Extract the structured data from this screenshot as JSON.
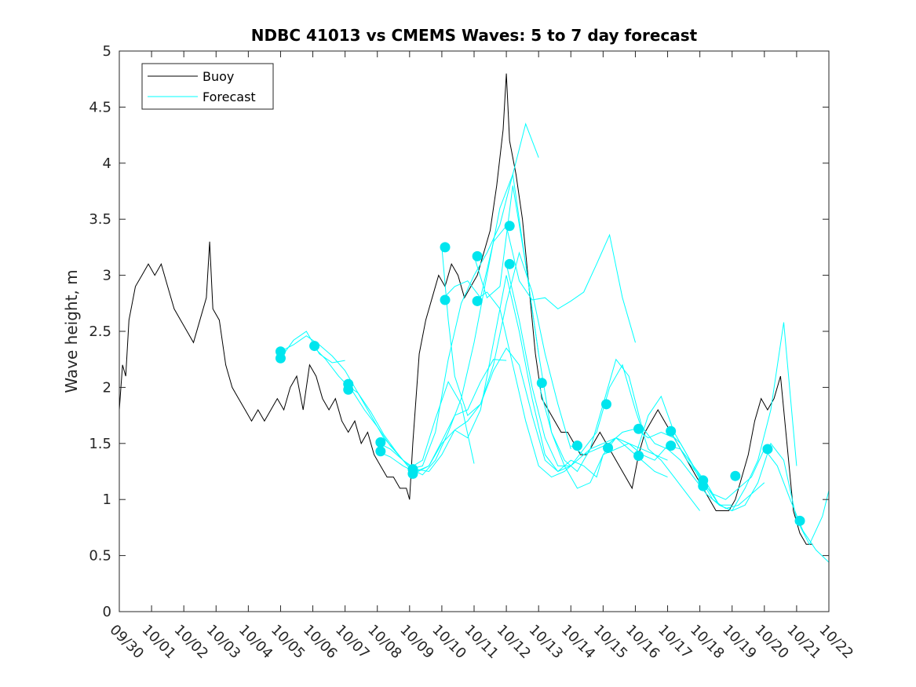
{
  "chart_data": {
    "type": "line",
    "title": "NDBC 41013 vs CMEMS Waves: 5 to 7 day forecast",
    "xlabel": "",
    "ylabel": "Wave height, m",
    "xlim": [
      0,
      22
    ],
    "ylim": [
      0,
      5
    ],
    "x_tick_labels": [
      "09/30",
      "10/01",
      "10/02",
      "10/03",
      "10/04",
      "10/05",
      "10/06",
      "10/07",
      "10/08",
      "10/09",
      "10/10",
      "10/11",
      "10/12",
      "10/13",
      "10/14",
      "10/15",
      "10/16",
      "10/17",
      "10/18",
      "10/19",
      "10/20",
      "10/21",
      "10/22"
    ],
    "y_ticks": [
      0,
      0.5,
      1,
      1.5,
      2,
      2.5,
      3,
      3.5,
      4,
      4.5,
      5
    ],
    "y_tick_labels": [
      "0",
      "0.5",
      "1",
      "1.5",
      "2",
      "2.5",
      "3",
      "3.5",
      "4",
      "4.5",
      "5"
    ],
    "legend": {
      "position": "top-left",
      "entries": [
        "Buoy",
        "Forecast"
      ]
    },
    "colors": {
      "buoy": "#000000",
      "forecast": "#00ffff",
      "marker": "#00e5ee",
      "axis": "#262626"
    },
    "buoy": {
      "name": "Buoy",
      "x": [
        0,
        0.1,
        0.2,
        0.3,
        0.5,
        0.7,
        0.9,
        1.1,
        1.3,
        1.5,
        1.7,
        1.9,
        2.1,
        2.3,
        2.5,
        2.7,
        2.8,
        2.9,
        3.1,
        3.3,
        3.5,
        3.7,
        3.9,
        4.1,
        4.3,
        4.5,
        4.7,
        4.9,
        5.1,
        5.3,
        5.5,
        5.7,
        5.9,
        6.1,
        6.3,
        6.5,
        6.7,
        6.9,
        7.1,
        7.3,
        7.5,
        7.7,
        7.9,
        8.1,
        8.3,
        8.5,
        8.7,
        8.9,
        9.0,
        9.1,
        9.3,
        9.5,
        9.7,
        9.9,
        10.1,
        10.3,
        10.5,
        10.7,
        10.9,
        11.1,
        11.3,
        11.5,
        11.7,
        11.9,
        12.0,
        12.1,
        12.3,
        12.5,
        12.7,
        12.9,
        13.1,
        13.3,
        13.5,
        13.7,
        13.9,
        14.1,
        14.3,
        14.5,
        14.7,
        14.9,
        15.1,
        15.3,
        15.5,
        15.7,
        15.9,
        16.1,
        16.3,
        16.5,
        16.7,
        16.9,
        17.1,
        17.3,
        17.5,
        17.7,
        17.9,
        18.1,
        18.3,
        18.5,
        18.7,
        18.9,
        19.1,
        19.3,
        19.5,
        19.7,
        19.9,
        20.1,
        20.3,
        20.5,
        20.7,
        20.9,
        21.1,
        21.3,
        21.5
      ],
      "values": [
        1.8,
        2.2,
        2.1,
        2.6,
        2.9,
        3.0,
        3.1,
        3.0,
        3.1,
        2.9,
        2.7,
        2.6,
        2.5,
        2.4,
        2.6,
        2.8,
        3.3,
        2.7,
        2.6,
        2.2,
        2.0,
        1.9,
        1.8,
        1.7,
        1.8,
        1.7,
        1.8,
        1.9,
        1.8,
        2.0,
        2.1,
        1.8,
        2.2,
        2.1,
        1.9,
        1.8,
        1.9,
        1.7,
        1.6,
        1.7,
        1.5,
        1.6,
        1.4,
        1.3,
        1.2,
        1.2,
        1.1,
        1.1,
        1.0,
        1.5,
        2.3,
        2.6,
        2.8,
        3.0,
        2.9,
        3.1,
        3.0,
        2.8,
        2.9,
        3.0,
        3.2,
        3.4,
        3.8,
        4.3,
        4.8,
        4.2,
        3.9,
        3.5,
        2.9,
        2.3,
        1.9,
        1.8,
        1.7,
        1.6,
        1.6,
        1.5,
        1.4,
        1.4,
        1.5,
        1.6,
        1.5,
        1.4,
        1.3,
        1.2,
        1.1,
        1.4,
        1.6,
        1.7,
        1.8,
        1.7,
        1.6,
        1.5,
        1.4,
        1.3,
        1.2,
        1.1,
        1.0,
        0.9,
        0.9,
        0.9,
        1.0,
        1.2,
        1.4,
        1.7,
        1.9,
        1.8,
        1.9,
        2.1,
        1.5,
        0.9,
        0.7,
        0.6,
        0.6
      ]
    },
    "forecast_series": [
      {
        "name": "Forecast",
        "x": [
          5.0,
          5.4,
          5.8,
          6.2,
          6.6,
          7.0,
          7.4,
          7.8,
          8.2,
          8.6,
          9.0,
          9.4,
          9.8,
          10.2,
          10.6,
          11.0
        ],
        "values": [
          2.32,
          2.38,
          2.46,
          2.38,
          2.28,
          2.15,
          1.95,
          1.78,
          1.58,
          1.42,
          1.28,
          1.35,
          1.72,
          2.05,
          1.85,
          1.32
        ]
      },
      {
        "name": "Forecast",
        "x": [
          5.0,
          5.4,
          5.8,
          6.2,
          6.6,
          7.0
        ],
        "values": [
          2.26,
          2.42,
          2.5,
          2.3,
          2.22,
          2.24
        ]
      },
      {
        "name": "Forecast",
        "x": [
          6.0,
          6.4,
          6.8,
          7.2,
          7.6,
          8.0,
          8.4,
          8.8,
          9.2,
          9.6,
          10.0,
          10.4,
          10.8,
          11.2,
          11.6,
          12.0
        ],
        "values": [
          2.37,
          2.25,
          2.1,
          1.98,
          1.8,
          1.65,
          1.48,
          1.35,
          1.25,
          1.3,
          1.52,
          1.75,
          1.8,
          2.05,
          2.25,
          2.24
        ]
      },
      {
        "name": "Forecast",
        "x": [
          7.0,
          7.4,
          7.8,
          8.2,
          8.6,
          9.0,
          9.4,
          9.8,
          10.2,
          10.6,
          11.0,
          11.4,
          11.8,
          12.2,
          12.6,
          13.0
        ],
        "values": [
          2.03,
          1.95,
          1.75,
          1.55,
          1.42,
          1.28,
          1.22,
          1.35,
          1.6,
          1.9,
          2.4,
          3.0,
          3.6,
          3.9,
          3.1,
          2.3
        ]
      },
      {
        "name": "Forecast",
        "x": [
          8.0,
          8.4,
          8.8,
          9.2,
          9.6,
          10.0,
          10.4,
          10.8,
          11.2,
          11.6,
          12.0,
          12.4,
          12.8,
          13.2,
          13.6,
          14.0
        ],
        "values": [
          1.51,
          1.45,
          1.35,
          1.27,
          1.25,
          1.4,
          1.62,
          1.7,
          1.85,
          2.2,
          2.75,
          3.2,
          2.85,
          2.3,
          1.85,
          1.45
        ]
      },
      {
        "name": "Forecast",
        "x": [
          8.0,
          8.4,
          8.8,
          9.2,
          9.6,
          10.0,
          10.4,
          10.8,
          11.2,
          11.6,
          12.0,
          12.4,
          12.8,
          13.2,
          13.6,
          14.0
        ],
        "values": [
          1.43,
          1.38,
          1.3,
          1.24,
          1.3,
          1.5,
          1.62,
          1.55,
          1.8,
          2.4,
          3.0,
          2.5,
          1.9,
          1.4,
          1.25,
          1.3
        ]
      },
      {
        "name": "Forecast",
        "x": [
          9.0,
          9.4,
          9.8,
          10.2,
          10.6,
          11.0,
          11.4,
          11.8,
          12.2,
          12.6,
          13.0
        ],
        "values": [
          1.27,
          1.3,
          1.6,
          2.25,
          2.75,
          3.0,
          3.2,
          3.45,
          3.9,
          4.35,
          4.05
        ]
      },
      {
        "name": "Forecast",
        "x": [
          10.0,
          10.2,
          10.4,
          10.8,
          11.2,
          11.6,
          12.0,
          12.4,
          12.8,
          13.2,
          13.6,
          14.0,
          14.4,
          14.8,
          15.0,
          15.4,
          15.8,
          16.0
        ],
        "values": [
          3.25,
          2.6,
          2.1,
          1.75,
          1.85,
          2.15,
          2.35,
          2.2,
          1.75,
          1.35,
          1.25,
          1.35,
          1.3,
          1.2,
          1.4,
          1.55,
          1.5,
          1.45
        ]
      },
      {
        "name": "Forecast",
        "x": [
          10.0,
          10.4,
          10.8,
          11.2,
          11.6,
          12.0,
          12.4,
          12.8,
          13.2,
          13.6,
          14.0,
          14.4,
          14.8,
          15.2,
          15.6,
          16.0
        ],
        "values": [
          2.78,
          2.9,
          2.95,
          2.8,
          3.3,
          3.44,
          2.95,
          2.78,
          2.8,
          2.7,
          2.77,
          2.85,
          3.1,
          3.36,
          2.8,
          2.4
        ]
      },
      {
        "name": "Forecast",
        "x": [
          11.0,
          11.4,
          11.8,
          12.2,
          12.6,
          13.0,
          13.4,
          13.8,
          14.2,
          14.6,
          15.0,
          15.4,
          15.8,
          16.2,
          16.6,
          17.0
        ],
        "values": [
          3.17,
          2.8,
          2.9,
          3.8,
          3.1,
          2.3,
          1.6,
          1.3,
          1.1,
          1.15,
          1.4,
          1.45,
          1.5,
          1.45,
          1.4,
          1.35
        ]
      },
      {
        "name": "Forecast",
        "x": [
          11.0,
          11.4,
          11.8,
          12.2,
          12.6,
          13.0,
          13.4,
          13.8,
          14.2,
          14.6,
          15.0,
          15.4,
          15.8,
          16.2,
          16.6,
          17.0
        ],
        "values": [
          2.77,
          2.85,
          2.7,
          2.2,
          1.7,
          1.3,
          1.2,
          1.25,
          1.35,
          1.45,
          1.5,
          1.55,
          1.45,
          1.35,
          1.25,
          1.2
        ]
      },
      {
        "name": "Forecast",
        "x": [
          12.0,
          12.4,
          12.8,
          13.2,
          13.6,
          14.0,
          14.4,
          14.8,
          15.2,
          15.6,
          16.0,
          16.4,
          16.8,
          17.2,
          17.6,
          18.0
        ],
        "values": [
          3.1,
          2.6,
          2.0,
          1.55,
          1.3,
          1.3,
          1.45,
          1.6,
          2.0,
          2.2,
          1.8,
          1.45,
          1.35,
          1.2,
          1.05,
          0.9
        ]
      },
      {
        "name": "Forecast",
        "x": [
          13.0,
          13.4,
          13.8,
          14.2,
          14.6,
          15.0,
          15.4,
          15.8,
          16.2,
          16.6,
          17.0,
          17.4,
          17.8,
          18.2,
          18.6,
          19.0
        ],
        "values": [
          2.04,
          1.6,
          1.35,
          1.25,
          1.45,
          1.85,
          2.25,
          2.1,
          1.65,
          1.5,
          1.45,
          1.35,
          1.2,
          1.05,
          0.95,
          0.95
        ]
      },
      {
        "name": "Forecast",
        "x": [
          14.0,
          14.4,
          14.8,
          15.2,
          15.6,
          16.0,
          16.4,
          16.8,
          17.2,
          17.6,
          18.0,
          18.4,
          18.8,
          19.2,
          19.6,
          20.0
        ],
        "values": [
          1.48,
          1.4,
          1.45,
          1.5,
          1.6,
          1.63,
          1.55,
          1.6,
          1.55,
          1.35,
          1.2,
          1.0,
          0.92,
          0.95,
          1.05,
          1.15
        ]
      },
      {
        "name": "Forecast",
        "x": [
          15.0,
          15.4,
          15.8,
          16.2,
          16.6,
          17.0,
          17.4,
          17.8,
          18.2,
          18.6,
          19.0,
          19.4,
          19.8,
          20.2,
          20.6,
          21.0
        ],
        "values": [
          1.46,
          1.55,
          1.5,
          1.4,
          1.35,
          1.48,
          1.45,
          1.3,
          1.12,
          0.95,
          0.9,
          1.1,
          1.35,
          1.8,
          2.58,
          1.3
        ]
      },
      {
        "name": "Forecast",
        "x": [
          16.0,
          16.4,
          16.8,
          17.2,
          17.6,
          18.0,
          18.4,
          18.8,
          19.2,
          19.6,
          20.0,
          20.4,
          20.8,
          21.2,
          21.6,
          22.0
        ],
        "values": [
          1.39,
          1.75,
          1.92,
          1.6,
          1.4,
          1.18,
          1.05,
          1.0,
          1.1,
          1.2,
          1.45,
          1.3,
          1.0,
          0.72,
          0.55,
          0.44
        ]
      },
      {
        "name": "Forecast",
        "x": [
          17.0,
          17.4,
          17.8,
          18.2,
          18.6,
          19.0,
          19.4,
          19.8,
          20.2,
          20.6,
          21.0,
          21.4,
          21.8,
          22.0
        ],
        "values": [
          1.61,
          1.5,
          1.3,
          1.15,
          0.95,
          0.9,
          0.95,
          1.15,
          1.5,
          1.35,
          0.82,
          0.6,
          0.85,
          1.08
        ]
      }
    ],
    "forecast_markers": {
      "x": [
        5.0,
        5.0,
        6.05,
        7.1,
        7.1,
        8.1,
        8.1,
        9.1,
        9.1,
        10.1,
        10.1,
        11.1,
        11.1,
        12.1,
        12.1,
        13.1,
        14.2,
        15.1,
        15.15,
        16.1,
        16.1,
        17.1,
        17.1,
        18.1,
        18.1,
        19.1,
        20.1,
        21.1
      ],
      "values": [
        2.32,
        2.26,
        2.37,
        2.03,
        1.98,
        1.51,
        1.43,
        1.27,
        1.23,
        3.25,
        2.78,
        3.17,
        2.77,
        3.44,
        3.1,
        2.04,
        1.48,
        1.85,
        1.46,
        1.63,
        1.39,
        1.61,
        1.48,
        1.17,
        1.12,
        1.21,
        1.45,
        0.81
      ]
    }
  }
}
